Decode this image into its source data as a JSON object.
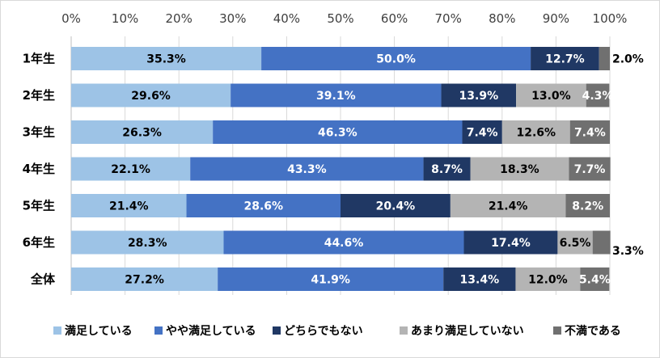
{
  "chart_data": {
    "type": "bar",
    "orientation": "horizontal",
    "stacked": true,
    "percent": true,
    "xlim": [
      0,
      100
    ],
    "xticks": [
      "0%",
      "10%",
      "20%",
      "30%",
      "40%",
      "50%",
      "60%",
      "70%",
      "80%",
      "90%",
      "100%"
    ],
    "categories": [
      "1年生",
      "2年生",
      "3年生",
      "4年生",
      "5年生",
      "6年生",
      "全体"
    ],
    "series": [
      {
        "name": "満足している",
        "color": "#9dc3e6",
        "label_color": "#000000",
        "values": [
          35.3,
          29.6,
          26.3,
          22.1,
          21.4,
          28.3,
          27.2
        ],
        "labels": [
          "35.3%",
          "29.6%",
          "26.3%",
          "22.1%",
          "21.4%",
          "28.3%",
          "27.2%"
        ]
      },
      {
        "name": "やや満足している",
        "color": "#4472c4",
        "label_color": "#ffffff",
        "values": [
          50.0,
          39.1,
          46.3,
          43.3,
          28.6,
          44.6,
          41.9
        ],
        "labels": [
          "50.0%",
          "39.1%",
          "46.3%",
          "43.3%",
          "28.6%",
          "44.6%",
          "41.9%"
        ]
      },
      {
        "name": "どちらでもない",
        "color": "#203864",
        "label_color": "#ffffff",
        "values": [
          12.7,
          13.9,
          7.4,
          8.7,
          20.4,
          17.4,
          13.4
        ],
        "labels": [
          "12.7%",
          "13.9%",
          "7.4%",
          "8.7%",
          "20.4%",
          "17.4%",
          "13.4%"
        ]
      },
      {
        "name": "あまり満足していない",
        "color": "#b4b4b4",
        "label_color": "#000000",
        "values": [
          0,
          13.0,
          12.6,
          18.3,
          21.4,
          6.5,
          12.0
        ],
        "labels": [
          "",
          "13.0%",
          "12.6%",
          "18.3%",
          "21.4%",
          "6.5%",
          "12.0%"
        ]
      },
      {
        "name": "不満である",
        "color": "#707070",
        "label_color": "#ffffff",
        "values": [
          2.0,
          4.3,
          7.4,
          7.7,
          8.2,
          3.3,
          5.4
        ],
        "labels": [
          "2.0%",
          "4.3%",
          "7.4%",
          "7.7%",
          "8.2%",
          "3.3%",
          "5.4%"
        ],
        "outside_labels": [
          true,
          false,
          false,
          false,
          false,
          true,
          false
        ]
      }
    ],
    "grid": true,
    "legend_position": "bottom",
    "axis_position": "top"
  }
}
